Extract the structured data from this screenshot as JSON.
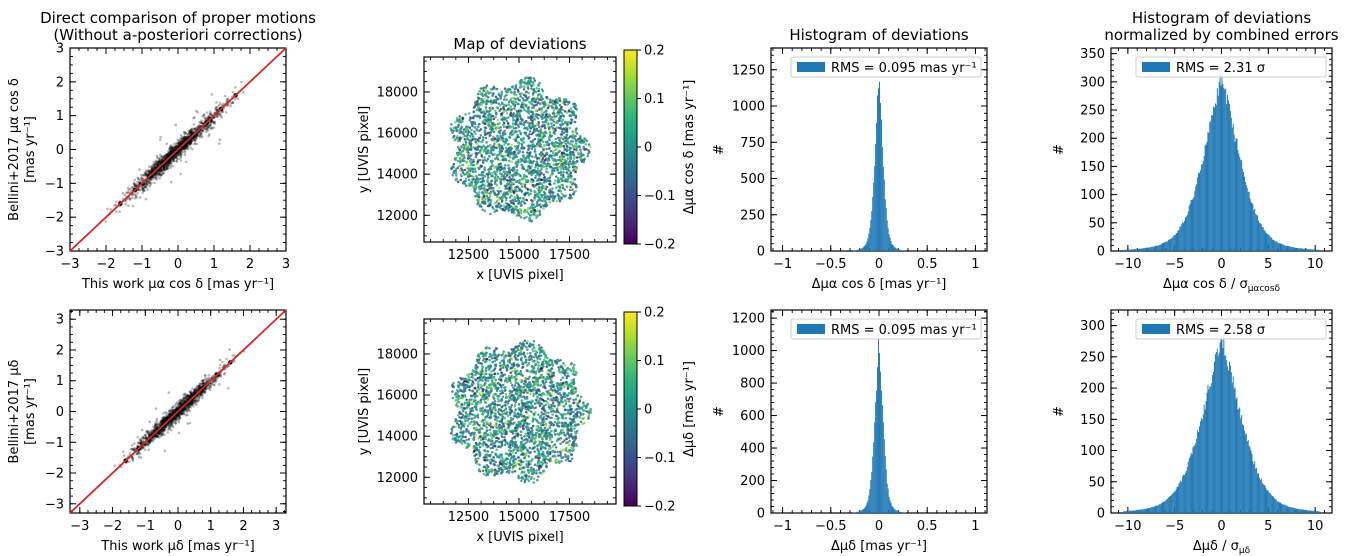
{
  "colors": {
    "accent": "#1f77b4",
    "fit_line": "#d62728",
    "points": "#000000"
  },
  "colorbar_colormap": "viridis",
  "chart_data": [
    {
      "id": "scatter-ra",
      "type": "scatter",
      "title": [
        "Direct comparison of proper motions",
        "(Without a-posteriori corrections)"
      ],
      "xlabel": "This work μα cos δ [mas yr⁻¹]",
      "ylabel": [
        "Bellini+2017 μα cos δ",
        "[mas yr⁻¹]"
      ],
      "xlim": [
        -3,
        3
      ],
      "ylim": [
        -3,
        3
      ],
      "xticks": [
        -3,
        -2,
        -1,
        0,
        1,
        2,
        3
      ],
      "yticks": [
        -3,
        -2,
        -1,
        0,
        1,
        2,
        3
      ],
      "x": [
        -1.6,
        -1.2,
        -0.8,
        -0.4,
        0.0,
        0.4,
        0.8,
        1.2,
        1.6
      ],
      "y": [
        -1.6,
        -1.2,
        -0.8,
        -0.4,
        0.0,
        0.4,
        0.8,
        1.2,
        1.6
      ],
      "spread_sd": 0.13,
      "extent": [
        -2.0,
        1.9
      ],
      "one_to_one_line": true
    },
    {
      "id": "map-ra",
      "type": "scatter",
      "title": "Map of deviations",
      "xlabel": "x [UVIS pixel]",
      "ylabel": "y [UVIS pixel]",
      "xlim": [
        10300,
        19800
      ],
      "ylim": [
        10700,
        19700
      ],
      "xticks": [
        12500,
        15000,
        17500
      ],
      "yticks": [
        12000,
        14000,
        16000,
        18000
      ],
      "field_center": [
        15000,
        15200
      ],
      "field_radius": 3300,
      "value_sd": 0.075,
      "colorbar": {
        "label": "Δμα cos δ   [mas yr⁻¹]",
        "range": [
          -0.2,
          0.2
        ],
        "ticks": [
          -0.2,
          -0.1,
          0.0,
          0.1,
          0.2
        ]
      }
    },
    {
      "id": "hist-ra",
      "type": "bar",
      "title": "Histogram of deviations",
      "xlabel": "Δμα cos δ   [mas yr⁻¹]",
      "ylabel": "#",
      "xlim": [
        -1.12,
        1.12
      ],
      "ylim": [
        0,
        1400
      ],
      "xticks": [
        -1.0,
        -0.5,
        0.0,
        0.5,
        1.0
      ],
      "yticks": [
        0,
        250,
        500,
        750,
        1000,
        1250
      ],
      "peak": 1220,
      "width_sd": 0.045,
      "bin_width": 0.01,
      "bin_range": [
        -0.45,
        0.45
      ],
      "legend": "RMS = 0.095 mas yr⁻¹"
    },
    {
      "id": "histnorm-ra",
      "type": "bar",
      "title": [
        "Histogram of deviations",
        "normalized by combined errors"
      ],
      "xlabel": "Δμα cos δ / σ",
      "xlabel_subscript": "μαcosδ",
      "ylabel": "#",
      "xlim": [
        -11.8,
        11.8
      ],
      "ylim": [
        0,
        360
      ],
      "xticks": [
        -10,
        -5,
        0,
        5,
        10
      ],
      "yticks": [
        0,
        50,
        100,
        150,
        200,
        250,
        300,
        350
      ],
      "peak": 315,
      "width_sd": 2.1,
      "bin_width": 0.1,
      "bin_range": [
        -10.5,
        10.5
      ],
      "legend": "RMS = 2.31 σ"
    },
    {
      "id": "scatter-dec",
      "type": "scatter",
      "title": "",
      "xlabel": "This work μδ   [mas yr⁻¹]",
      "ylabel": [
        "Bellini+2017 μδ",
        "[mas yr⁻¹]"
      ],
      "xlim": [
        -3.3,
        3.3
      ],
      "ylim": [
        -3.3,
        3.3
      ],
      "xticks": [
        -3,
        -2,
        -1,
        0,
        1,
        2,
        3
      ],
      "yticks": [
        -3,
        -2,
        -1,
        0,
        1,
        2,
        3
      ],
      "x": [
        -1.6,
        -1.2,
        -0.8,
        -0.4,
        0.0,
        0.4,
        0.8,
        1.2,
        1.6
      ],
      "y": [
        -1.6,
        -1.2,
        -0.8,
        -0.4,
        0.0,
        0.4,
        0.8,
        1.2,
        1.6
      ],
      "spread_sd": 0.13,
      "extent": [
        -2.0,
        1.9
      ],
      "one_to_one_line": true
    },
    {
      "id": "map-dec",
      "type": "scatter",
      "title": "",
      "xlabel": "x [UVIS pixel]",
      "ylabel": "y [UVIS pixel]",
      "xlim": [
        10300,
        19800
      ],
      "ylim": [
        10700,
        19700
      ],
      "xticks": [
        12500,
        15000,
        17500
      ],
      "yticks": [
        12000,
        14000,
        16000,
        18000
      ],
      "field_center": [
        15000,
        15200
      ],
      "field_radius": 3300,
      "value_sd": 0.075,
      "colorbar": {
        "label": "Δμδ   [mas yr⁻¹]",
        "range": [
          -0.2,
          0.2
        ],
        "ticks": [
          -0.2,
          -0.1,
          0.0,
          0.1,
          0.2
        ]
      }
    },
    {
      "id": "hist-dec",
      "type": "bar",
      "title": "",
      "xlabel": "Δμδ   [mas yr⁻¹]",
      "ylabel": "#",
      "xlim": [
        -1.12,
        1.12
      ],
      "ylim": [
        0,
        1250
      ],
      "xticks": [
        -1.0,
        -0.5,
        0.0,
        0.5,
        1.0
      ],
      "yticks": [
        0,
        200,
        400,
        600,
        800,
        1000,
        1200
      ],
      "peak": 1090,
      "width_sd": 0.045,
      "bin_width": 0.01,
      "bin_range": [
        -0.45,
        0.45
      ],
      "legend": "RMS = 0.095 mas yr⁻¹"
    },
    {
      "id": "histnorm-dec",
      "type": "bar",
      "title": "",
      "xlabel": "Δμδ / σ",
      "xlabel_subscript": "μδ",
      "ylabel": "#",
      "xlim": [
        -11.8,
        11.8
      ],
      "ylim": [
        0,
        325
      ],
      "xticks": [
        -10,
        -5,
        0,
        5,
        10
      ],
      "yticks": [
        0,
        50,
        100,
        150,
        200,
        250,
        300
      ],
      "peak": 285,
      "width_sd": 2.3,
      "bin_width": 0.1,
      "bin_range": [
        -10.5,
        10.5
      ],
      "legend": "RMS = 2.58 σ"
    }
  ]
}
